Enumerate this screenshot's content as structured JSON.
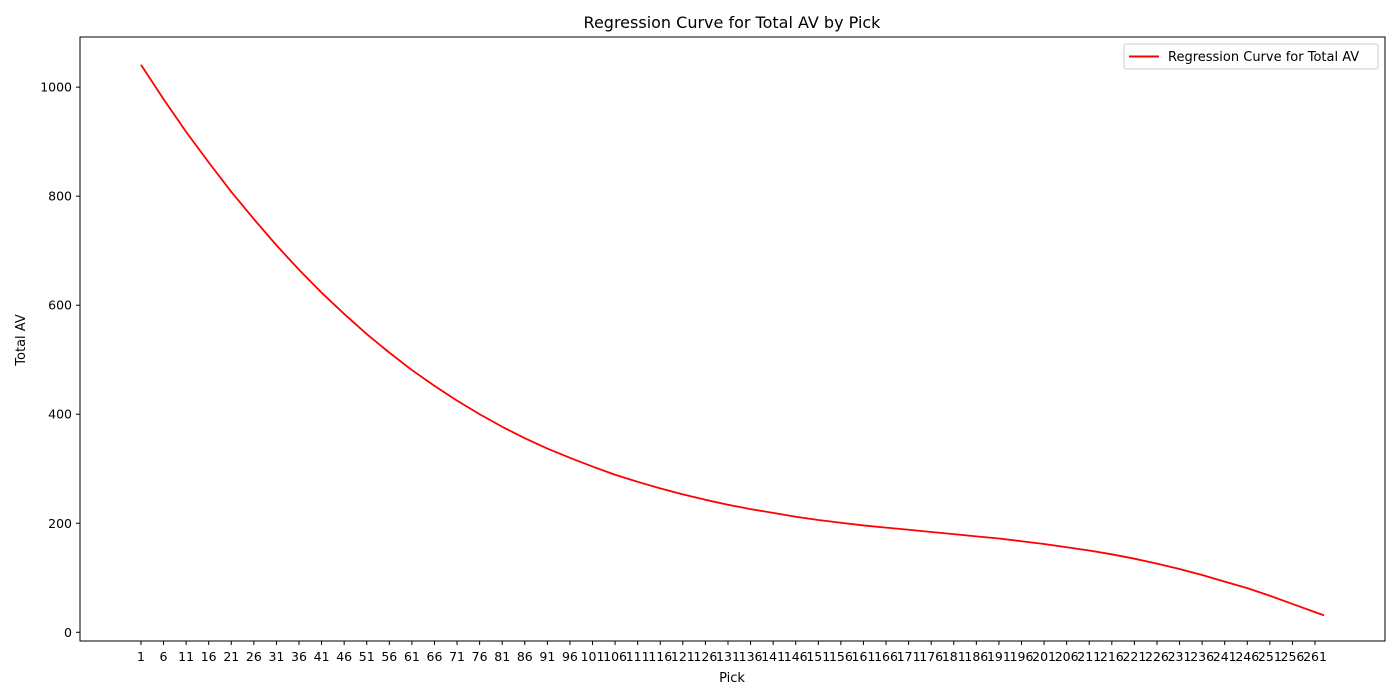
{
  "chart_data": {
    "type": "line",
    "title": "Regression Curve for Total AV by Pick",
    "xlabel": "Pick",
    "ylabel": "Total AV",
    "xlim": [
      -12.5,
      276.5
    ],
    "ylim": [
      -16,
      1092
    ],
    "xticks": [
      1,
      6,
      11,
      16,
      21,
      26,
      31,
      36,
      41,
      46,
      51,
      56,
      61,
      66,
      71,
      76,
      81,
      86,
      91,
      96,
      101,
      106,
      111,
      116,
      121,
      126,
      131,
      136,
      141,
      146,
      151,
      156,
      161,
      166,
      171,
      176,
      181,
      186,
      191,
      196,
      201,
      206,
      211,
      216,
      221,
      226,
      231,
      236,
      241,
      246,
      251,
      256,
      261
    ],
    "yticks": [
      0,
      200,
      400,
      600,
      800,
      1000
    ],
    "grid": false,
    "legend_position": "top-right",
    "series": [
      {
        "name": "Regression Curve for Total AV",
        "color": "#ff0000",
        "x": [
          1,
          6,
          11,
          16,
          21,
          26,
          31,
          36,
          41,
          46,
          51,
          56,
          61,
          66,
          71,
          76,
          81,
          86,
          91,
          96,
          101,
          106,
          111,
          116,
          121,
          126,
          131,
          136,
          141,
          146,
          151,
          156,
          161,
          166,
          171,
          176,
          181,
          186,
          191,
          196,
          201,
          206,
          211,
          216,
          221,
          226,
          231,
          236,
          241,
          246,
          251,
          256,
          261,
          263
        ],
        "y": [
          1041,
          978,
          918,
          862,
          808,
          758,
          710,
          665,
          623,
          584,
          547,
          513,
          481,
          452,
          425,
          400,
          377,
          356,
          337,
          320,
          304,
          289,
          276,
          264,
          253,
          243,
          234,
          226,
          219,
          212,
          206,
          201,
          196,
          192,
          188,
          184,
          180,
          176,
          172,
          167,
          162,
          156,
          150,
          143,
          135,
          126,
          116,
          105,
          93,
          81,
          67,
          52,
          37,
          31
        ]
      }
    ]
  }
}
